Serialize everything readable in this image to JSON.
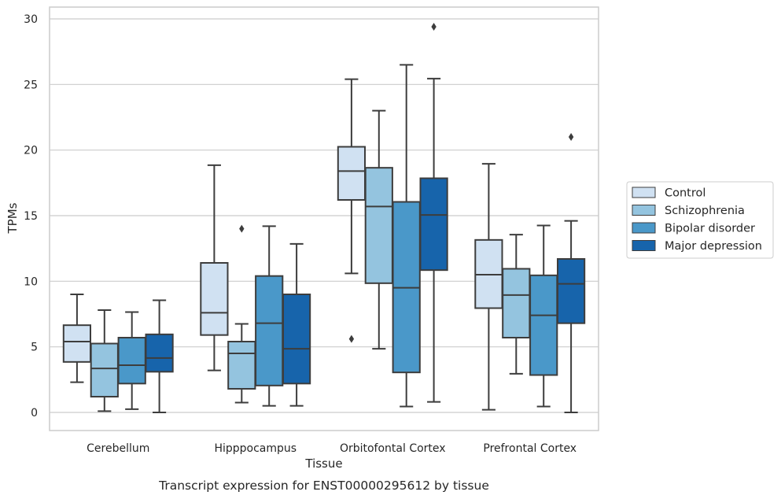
{
  "chart_data": {
    "type": "box",
    "title": "",
    "xlabel": "Tissue",
    "ylabel": "TPMs",
    "caption": "Transcript expression for ENST00000295612 by tissue",
    "ylim": [
      -1.3,
      30.8
    ],
    "yticks": [
      0,
      5,
      10,
      15,
      20,
      25,
      30
    ],
    "grid": "horizontal",
    "legend_position": "right",
    "categories": [
      "Cerebellum",
      "Hipppocampus",
      "Orbitofontal Cortex",
      "Prefrontal Cortex"
    ],
    "colors": {
      "Control": "#d0e1f2",
      "Schizophrenia": "#94c4df",
      "Bipolar disorder": "#4a98c9",
      "Major depression": "#1764ab",
      "line": "#3d3d3d",
      "grid": "#cccccc",
      "frame": "#cccccc"
    },
    "series": [
      {
        "name": "Control",
        "boxes": [
          {
            "whisker_low": 2.3,
            "q1": 3.85,
            "median": 5.4,
            "q3": 6.65,
            "whisker_high": 9.0,
            "outliers": []
          },
          {
            "whisker_low": 3.2,
            "q1": 5.9,
            "median": 7.6,
            "q3": 11.4,
            "whisker_high": 18.85,
            "outliers": []
          },
          {
            "whisker_low": 10.6,
            "q1": 16.2,
            "median": 18.4,
            "q3": 20.25,
            "whisker_high": 25.4,
            "outliers": [
              5.6
            ]
          },
          {
            "whisker_low": 0.2,
            "q1": 7.95,
            "median": 10.5,
            "q3": 13.15,
            "whisker_high": 18.95,
            "outliers": []
          }
        ]
      },
      {
        "name": "Schizophrenia",
        "boxes": [
          {
            "whisker_low": 0.1,
            "q1": 1.2,
            "median": 3.35,
            "q3": 5.25,
            "whisker_high": 7.8,
            "outliers": []
          },
          {
            "whisker_low": 0.75,
            "q1": 1.8,
            "median": 4.5,
            "q3": 5.4,
            "whisker_high": 6.75,
            "outliers": [
              14.0
            ]
          },
          {
            "whisker_low": 4.85,
            "q1": 9.85,
            "median": 15.7,
            "q3": 18.65,
            "whisker_high": 23.0,
            "outliers": []
          },
          {
            "whisker_low": 2.95,
            "q1": 5.7,
            "median": 8.95,
            "q3": 10.95,
            "whisker_high": 13.55,
            "outliers": []
          }
        ]
      },
      {
        "name": "Bipolar disorder",
        "boxes": [
          {
            "whisker_low": 0.25,
            "q1": 2.2,
            "median": 3.6,
            "q3": 5.7,
            "whisker_high": 7.65,
            "outliers": []
          },
          {
            "whisker_low": 0.5,
            "q1": 2.05,
            "median": 6.8,
            "q3": 10.4,
            "whisker_high": 14.2,
            "outliers": []
          },
          {
            "whisker_low": 0.45,
            "q1": 3.05,
            "median": 9.5,
            "q3": 16.05,
            "whisker_high": 26.5,
            "outliers": []
          },
          {
            "whisker_low": 0.45,
            "q1": 2.85,
            "median": 7.4,
            "q3": 10.45,
            "whisker_high": 14.25,
            "outliers": []
          }
        ]
      },
      {
        "name": "Major depression",
        "boxes": [
          {
            "whisker_low": 0.0,
            "q1": 3.1,
            "median": 4.15,
            "q3": 5.95,
            "whisker_high": 8.55,
            "outliers": []
          },
          {
            "whisker_low": 0.5,
            "q1": 2.2,
            "median": 4.85,
            "q3": 9.0,
            "whisker_high": 12.85,
            "outliers": []
          },
          {
            "whisker_low": 0.8,
            "q1": 10.85,
            "median": 15.05,
            "q3": 17.85,
            "whisker_high": 25.45,
            "outliers": [
              29.4
            ]
          },
          {
            "whisker_low": 0.0,
            "q1": 6.8,
            "median": 9.8,
            "q3": 11.7,
            "whisker_high": 14.6,
            "outliers": [
              21.0
            ]
          }
        ]
      }
    ]
  }
}
